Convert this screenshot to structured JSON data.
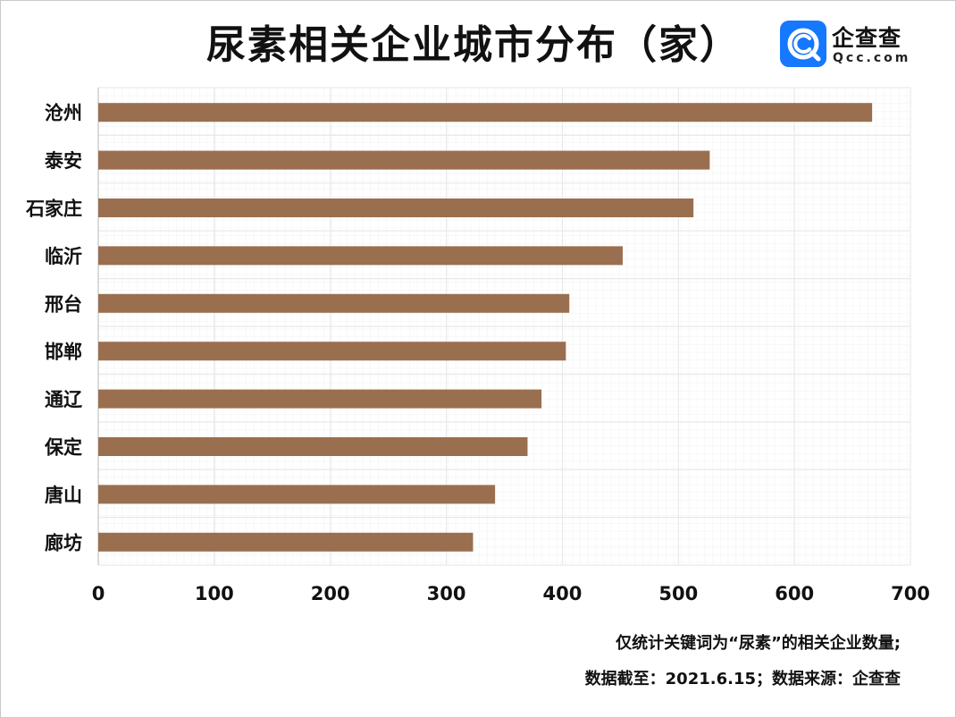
{
  "logo": {
    "name": "企查查",
    "domain": "Qcc.com",
    "accent": "#1677ff"
  },
  "notes": {
    "line1": "仅统计关键词为“尿素”的相关企业数量;",
    "line2": "数据截至：2021.6.15；数据来源：企查查"
  },
  "chart_data": {
    "type": "bar",
    "orientation": "horizontal",
    "title": "尿素相关企业城市分布（家）",
    "xlabel": "",
    "ylabel": "",
    "categories": [
      "沧州",
      "泰安",
      "石家庄",
      "临沂",
      "邢台",
      "邯郸",
      "通辽",
      "保定",
      "唐山",
      "廊坊"
    ],
    "values": [
      667,
      527,
      513,
      452,
      406,
      403,
      382,
      370,
      342,
      323
    ],
    "xlim": [
      0,
      700
    ],
    "xticks": [
      "0",
      "100",
      "200",
      "300",
      "400",
      "500",
      "600",
      "700"
    ],
    "grid": true,
    "legend": "none",
    "bar_color": "#9a6f4f",
    "grid_color": "#e9e9e9"
  }
}
